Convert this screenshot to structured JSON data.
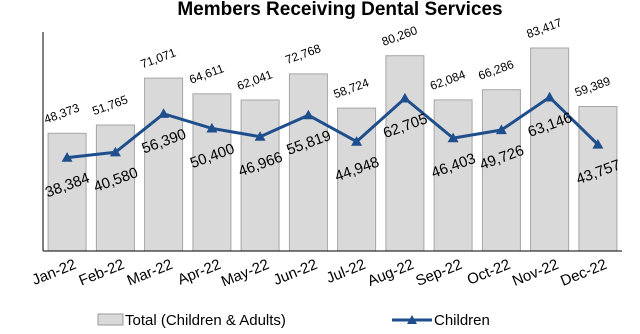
{
  "chart_data": {
    "type": "bar",
    "title": "Members Receiving Dental Services",
    "categories": [
      "Jan-22",
      "Feb-22",
      "Mar-22",
      "Apr-22",
      "May-22",
      "Jun-22",
      "Jul-22",
      "Aug-22",
      "Sep-22",
      "Oct-22",
      "Nov-22",
      "Dec-22"
    ],
    "series": [
      {
        "name": "Total (Children & Adults)",
        "type": "bar",
        "color": "#d9d9d9",
        "values": [
          48373,
          51765,
          71071,
          64611,
          62041,
          72768,
          58724,
          80260,
          62084,
          66286,
          83417,
          59389
        ],
        "labels": [
          "48,373",
          "51,765",
          "71,071",
          "64,611",
          "62,041",
          "72,768",
          "58,724",
          "80,260",
          "62,084",
          "66,286",
          "83,417",
          "59,389"
        ]
      },
      {
        "name": "Children",
        "type": "line",
        "color": "#1f4e8c",
        "values": [
          38384,
          40580,
          56390,
          50400,
          46966,
          55819,
          44948,
          62705,
          46403,
          49726,
          63146,
          43757
        ],
        "labels": [
          "38,384",
          "40,580",
          "56,390",
          "50,400",
          "46,966",
          "55,819",
          "44,948",
          "62,705",
          "46,403",
          "49,726",
          "63,146",
          "43,757"
        ]
      }
    ],
    "ylim": [
      0,
      90000
    ],
    "grid": false,
    "legend_position": "bottom"
  }
}
